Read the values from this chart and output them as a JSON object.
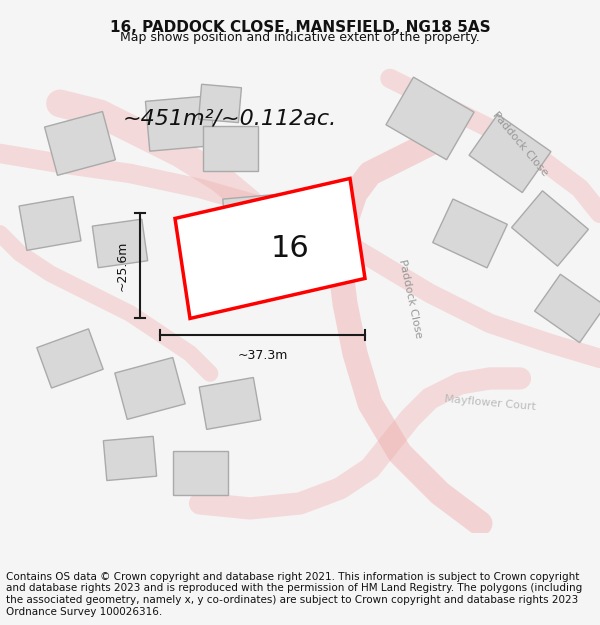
{
  "title": "16, PADDOCK CLOSE, MANSFIELD, NG18 5AS",
  "subtitle": "Map shows position and indicative extent of the property.",
  "footer": "Contains OS data © Crown copyright and database right 2021. This information is subject to Crown copyright and database rights 2023 and is reproduced with the permission of HM Land Registry. The polygons (including the associated geometry, namely x, y co-ordinates) are subject to Crown copyright and database rights 2023 Ordnance Survey 100026316.",
  "area_text": "~451m²/~0.112ac.",
  "width_label": "~37.3m",
  "height_label": "~25.6m",
  "plot_number": "16",
  "bg_color": "#f5f5f5",
  "map_bg": "#ffffff",
  "road_color": "#f0b0b0",
  "road_fill": "#f5d0d0",
  "building_fill": "#d8d8d8",
  "building_edge": "#aaaaaa",
  "highlight_fill": "#ffffff",
  "highlight_edge": "#ff0000",
  "dim_line_color": "#1a1a1a",
  "title_fontsize": 11,
  "subtitle_fontsize": 9,
  "footer_fontsize": 7.5,
  "area_fontsize": 16,
  "label_fontsize": 9,
  "plot_num_fontsize": 22
}
